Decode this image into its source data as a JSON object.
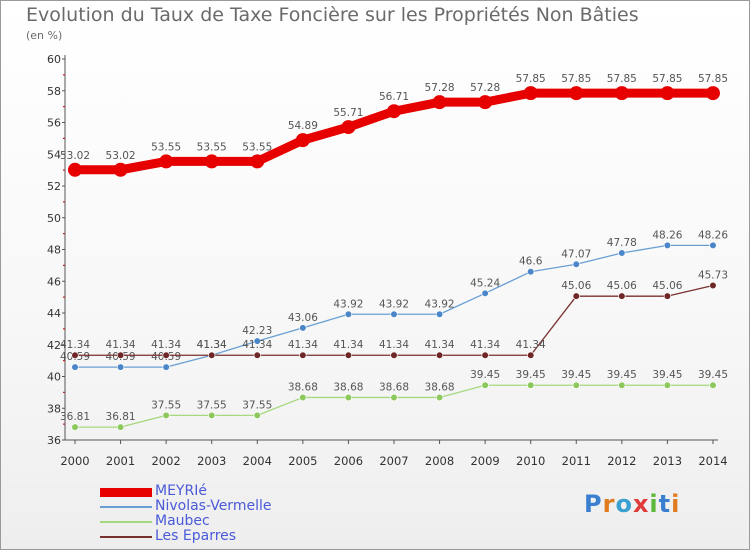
{
  "title": "Evolution du Taux de Taxe Foncière sur les Propriétés Non Bâties",
  "subtitle": "(en %)",
  "logo": {
    "text": "Proxiti",
    "letter_colors": [
      "#3a7fd0",
      "#e07b20",
      "#3aa0d0",
      "#e03a3a",
      "#5cb83a",
      "#3a7fd0",
      "#e07b20"
    ]
  },
  "colors": {
    "axis": "#555555",
    "grid": "#dddddd",
    "tick_text": "#333333",
    "data_label": "#555555"
  },
  "chart_data": {
    "type": "line",
    "title": "Evolution du Taux de Taxe Foncière sur les Propriétés Non Bâties",
    "ylabel": "(en %)",
    "x": [
      2000,
      2001,
      2002,
      2003,
      2004,
      2005,
      2006,
      2007,
      2008,
      2009,
      2010,
      2011,
      2012,
      2013,
      2014
    ],
    "ylim": [
      36,
      60
    ],
    "yticks": [
      36,
      38,
      40,
      42,
      44,
      46,
      48,
      50,
      52,
      54,
      56,
      58,
      60
    ],
    "grid": false,
    "legend_position": "bottom-left",
    "series": [
      {
        "name": "MEYRIé",
        "color": "#e60000",
        "width": 9,
        "marker": 7,
        "values": [
          53.02,
          53.02,
          53.55,
          53.55,
          53.55,
          54.89,
          55.71,
          56.71,
          57.28,
          57.28,
          57.85,
          57.85,
          57.85,
          57.85,
          57.85
        ],
        "labels": [
          "53.02",
          "53.02",
          "53.55",
          "53.55",
          "53.55",
          "54.89",
          "55.71",
          "56.71",
          "57.28",
          "57.28",
          "57.85",
          "57.85",
          "57.85",
          "57.85",
          "57.85"
        ]
      },
      {
        "name": "Nivolas-Vermelle",
        "color": "#6a9fd4",
        "marker_fill": "#4a86c8",
        "width": 1.3,
        "marker": 3.3,
        "values": [
          40.59,
          40.59,
          40.59,
          41.34,
          42.23,
          43.06,
          43.92,
          43.92,
          43.92,
          45.24,
          46.6,
          47.07,
          47.78,
          48.26,
          48.26
        ],
        "labels": [
          "40.59",
          "40.59",
          "40.59",
          "41.34",
          "42.23",
          "43.06",
          "43.92",
          "43.92",
          "43.92",
          "45.24",
          "46.6",
          "47.07",
          "47.78",
          "48.26",
          "48.26"
        ]
      },
      {
        "name": "Maubec",
        "color": "#a6d87e",
        "marker_fill": "#8cc85c",
        "width": 1.3,
        "marker": 3.3,
        "values": [
          36.81,
          36.81,
          37.55,
          37.55,
          37.55,
          38.68,
          38.68,
          38.68,
          38.68,
          39.45,
          39.45,
          39.45,
          39.45,
          39.45,
          39.45
        ],
        "labels": [
          "36.81",
          "36.81",
          "37.55",
          "37.55",
          "37.55",
          "38.68",
          "38.68",
          "38.68",
          "38.68",
          "39.45",
          "39.45",
          "39.45",
          "39.45",
          "39.45",
          "39.45"
        ]
      },
      {
        "name": "Les Eparres",
        "color": "#7a3030",
        "marker_fill": "#6e2626",
        "width": 1.3,
        "marker": 3.3,
        "values": [
          41.34,
          41.34,
          41.34,
          41.34,
          41.34,
          41.34,
          41.34,
          41.34,
          41.34,
          41.34,
          41.34,
          45.06,
          45.06,
          45.06,
          45.73
        ],
        "labels": [
          "41.34",
          "41.34",
          "41.34",
          "41.34",
          "41.34",
          "41.34",
          "41.34",
          "41.34",
          "41.34",
          "41.34",
          "41.34",
          "45.06",
          "45.06",
          "45.06",
          "45.73"
        ]
      }
    ]
  }
}
